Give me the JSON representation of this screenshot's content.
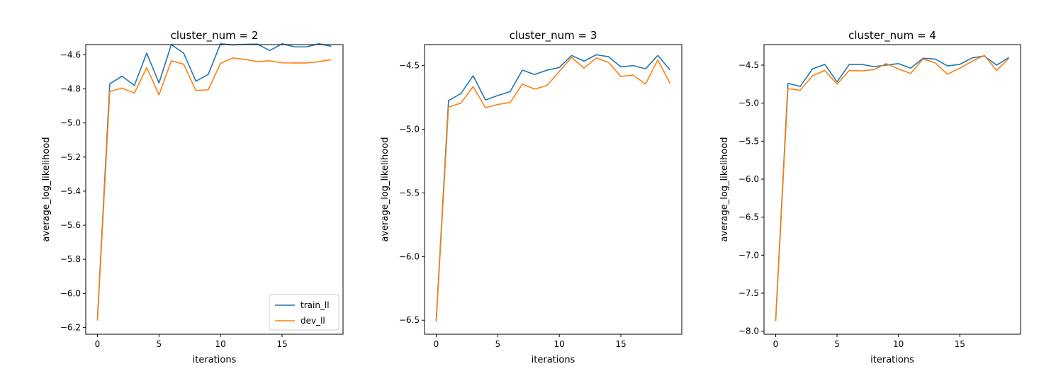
{
  "chart_data": [
    {
      "type": "line",
      "title": "cluster_num = 2",
      "xlabel": "iterations",
      "ylabel": "average_log_likelihood",
      "xlim": [
        -0.95,
        19.95
      ],
      "ylim": [
        -6.24,
        -4.54
      ],
      "xticks": [
        0,
        5,
        10,
        15
      ],
      "yticks": [
        -6.2,
        -6.0,
        -5.8,
        -5.6,
        -5.4,
        -5.2,
        -5.0,
        -4.8,
        -4.6
      ],
      "ytick_labels": [
        "−6.2",
        "−6.0",
        "−5.8",
        "−5.6",
        "−5.4",
        "−5.2",
        "−5.0",
        "−4.8",
        "−4.6"
      ],
      "legend": "lower-right",
      "x": [
        0,
        1,
        2,
        3,
        4,
        5,
        6,
        7,
        8,
        9,
        10,
        11,
        12,
        13,
        14,
        15,
        16,
        17,
        18,
        19
      ],
      "series": [
        {
          "name": "train_ll",
          "color": "#1f77b4",
          "values": [
            -6.15,
            -4.77,
            -4.725,
            -4.78,
            -4.59,
            -4.765,
            -4.54,
            -4.59,
            -4.755,
            -4.715,
            -4.535,
            -4.542,
            -4.538,
            -4.537,
            -4.575,
            -4.535,
            -4.553,
            -4.553,
            -4.535,
            -4.55
          ]
        },
        {
          "name": "dev_ll",
          "color": "#ff7f0e",
          "values": [
            -6.16,
            -4.815,
            -4.795,
            -4.825,
            -4.675,
            -4.835,
            -4.635,
            -4.655,
            -4.81,
            -4.805,
            -4.65,
            -4.618,
            -4.627,
            -4.64,
            -4.635,
            -4.647,
            -4.648,
            -4.648,
            -4.64,
            -4.628
          ]
        }
      ]
    },
    {
      "type": "line",
      "title": "cluster_num = 3",
      "xlabel": "iterations",
      "ylabel": "average_log_likelihood",
      "xlim": [
        -0.95,
        19.95
      ],
      "ylim": [
        -6.61,
        -4.335
      ],
      "xticks": [
        0,
        5,
        10,
        15
      ],
      "yticks": [
        -6.5,
        -6.0,
        -5.5,
        -5.0,
        -4.5
      ],
      "ytick_labels": [
        "−6.5",
        "−6.0",
        "−5.5",
        "−5.0",
        "−4.5"
      ],
      "x": [
        0,
        1,
        2,
        3,
        4,
        5,
        6,
        7,
        8,
        9,
        10,
        11,
        12,
        13,
        14,
        15,
        16,
        17,
        18,
        19
      ],
      "series": [
        {
          "name": "train_ll",
          "color": "#1f77b4",
          "values": [
            -6.5,
            -4.775,
            -4.72,
            -4.58,
            -4.77,
            -4.735,
            -4.705,
            -4.535,
            -4.57,
            -4.535,
            -4.515,
            -4.42,
            -4.465,
            -4.415,
            -4.43,
            -4.51,
            -4.5,
            -4.525,
            -4.42,
            -4.535
          ]
        },
        {
          "name": "dev_ll",
          "color": "#ff7f0e",
          "values": [
            -6.51,
            -4.825,
            -4.795,
            -4.665,
            -4.83,
            -4.805,
            -4.79,
            -4.645,
            -4.685,
            -4.655,
            -4.545,
            -4.435,
            -4.52,
            -4.44,
            -4.475,
            -4.585,
            -4.575,
            -4.645,
            -4.455,
            -4.64
          ]
        }
      ]
    },
    {
      "type": "line",
      "title": "cluster_num = 4",
      "xlabel": "iterations",
      "ylabel": "average_log_likelihood",
      "xlim": [
        -0.95,
        19.95
      ],
      "ylim": [
        -8.04,
        -4.23
      ],
      "xticks": [
        0,
        5,
        10,
        15
      ],
      "yticks": [
        -8.0,
        -7.5,
        -7.0,
        -6.5,
        -6.0,
        -5.5,
        -5.0,
        -4.5
      ],
      "ytick_labels": [
        "−8.0",
        "−7.5",
        "−7.0",
        "−6.5",
        "−6.0",
        "−5.5",
        "−5.0",
        "−4.5"
      ],
      "x": [
        0,
        1,
        2,
        3,
        4,
        5,
        6,
        7,
        8,
        9,
        10,
        11,
        12,
        13,
        14,
        15,
        16,
        17,
        18,
        19
      ],
      "series": [
        {
          "name": "train_ll",
          "color": "#1f77b4",
          "values": [
            -7.86,
            -4.74,
            -4.78,
            -4.55,
            -4.49,
            -4.72,
            -4.49,
            -4.49,
            -4.52,
            -4.5,
            -4.48,
            -4.54,
            -4.41,
            -4.42,
            -4.51,
            -4.49,
            -4.405,
            -4.38,
            -4.5,
            -4.4
          ]
        },
        {
          "name": "dev_ll",
          "color": "#ff7f0e",
          "values": [
            -7.87,
            -4.81,
            -4.83,
            -4.64,
            -4.57,
            -4.75,
            -4.57,
            -4.575,
            -4.56,
            -4.48,
            -4.55,
            -4.61,
            -4.42,
            -4.47,
            -4.62,
            -4.54,
            -4.45,
            -4.37,
            -4.57,
            -4.41
          ]
        }
      ]
    }
  ]
}
